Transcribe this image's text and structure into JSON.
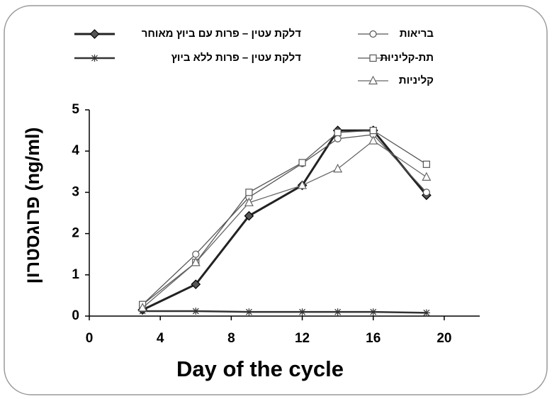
{
  "chart_data": {
    "type": "line",
    "xlabel": "Day of the cycle",
    "ylabel": "פרוגסטרון (ng/ml)",
    "xlim": [
      0,
      22
    ],
    "xticks": [
      0,
      4,
      8,
      12,
      16,
      20
    ],
    "ylim": [
      0,
      5
    ],
    "yticks": [
      0,
      1,
      2,
      3,
      4,
      5
    ],
    "x": [
      3,
      6,
      9,
      12,
      14,
      16,
      19
    ],
    "series": [
      {
        "name": "דלקת עטין – פרות עם ביוץ מאוחר",
        "color": "#222222",
        "marker": "diamond",
        "values": [
          0.15,
          0.77,
          2.43,
          3.17,
          4.5,
          4.5,
          2.93
        ]
      },
      {
        "name": "דלקת עטין – פרות ללא ביוץ",
        "color": "#333333",
        "marker": "star",
        "values": [
          0.12,
          0.12,
          0.1,
          0.1,
          0.1,
          0.1,
          0.08
        ]
      },
      {
        "name": "בריאות",
        "color": "#555555",
        "marker": "circle",
        "values": [
          0.28,
          1.5,
          2.88,
          3.7,
          4.3,
          4.4,
          3.0
        ]
      },
      {
        "name": "תת-קליניות",
        "color": "#555555",
        "marker": "square",
        "values": [
          0.28,
          1.3,
          3.0,
          3.72,
          4.45,
          4.5,
          3.68
        ]
      },
      {
        "name": "קליניות",
        "color": "#666666",
        "marker": "triangle",
        "values": [
          0.2,
          1.3,
          2.75,
          3.17,
          3.57,
          4.25,
          3.37
        ]
      }
    ]
  }
}
